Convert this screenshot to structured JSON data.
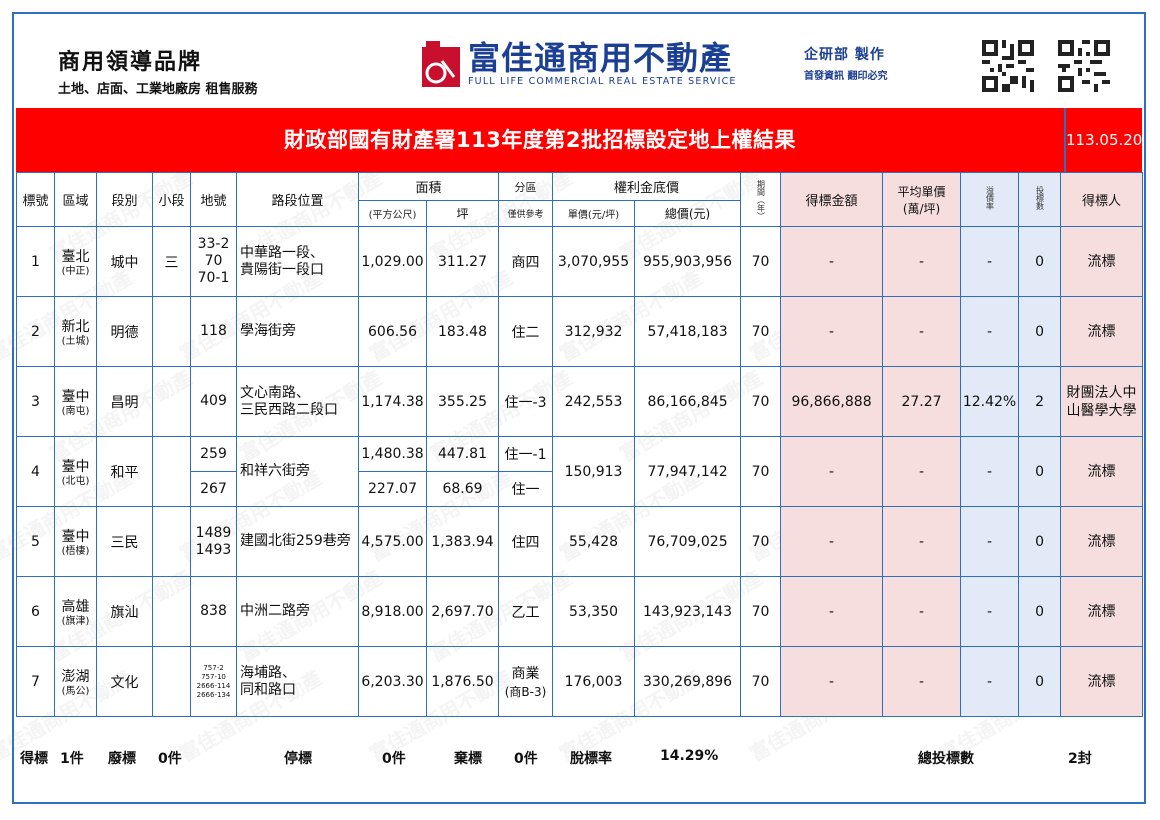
{
  "header": {
    "brand_title": "商用領導品牌",
    "brand_subtitle": "土地、店面、工業地廠房 租售服務",
    "company_name": "富佳通商用不動產",
    "company_en": "FULL LIFE COMMERCIAL REAL ESTATE SERVICE",
    "dept": "企研部 製作",
    "dept_note": "首發資訊 翻印必究"
  },
  "title": "財政部國有財產署113年度第2批招標設定地上權結果",
  "date": "113.05.20",
  "columns": {
    "no": "標號",
    "area": "區域",
    "section": "段別",
    "subsection": "小段",
    "lot": "地號",
    "location": "路段位置",
    "size": "面積",
    "size_sqm": "(平方公尺)",
    "size_ping": "坪",
    "zone": "分區",
    "zone_note": "僅供參考",
    "price": "權利金底價",
    "unit_price": "單價(元/坪)",
    "total_price": "總價(元)",
    "period": "期間（年）",
    "winning_amount": "得標金額",
    "avg_unit_price": "平均單價(萬/坪)",
    "premium_rate": "溢價率",
    "bid_count": "投標數",
    "winner": "得標人"
  },
  "rows": [
    {
      "no": "1",
      "area": "臺北",
      "district": "(中正)",
      "section": "城中",
      "subsection": "三",
      "lot": [
        "33-2",
        "70",
        "70-1"
      ],
      "location": [
        "中華路一段、",
        "貴陽街一段口"
      ],
      "sqm": "1,029.00",
      "ping": "311.27",
      "zone": "商四",
      "unit": "3,070,955",
      "total": "955,903,956",
      "period": "70",
      "win": "-",
      "avg": "-",
      "rate": "-",
      "bids": "0",
      "winner": "流標"
    },
    {
      "no": "2",
      "area": "新北",
      "district": "(土城)",
      "section": "明德",
      "subsection": "",
      "lot": [
        "118"
      ],
      "location": [
        "學海街旁"
      ],
      "sqm": "606.56",
      "ping": "183.48",
      "zone": "住二",
      "unit": "312,932",
      "total": "57,418,183",
      "period": "70",
      "win": "-",
      "avg": "-",
      "rate": "-",
      "bids": "0",
      "winner": "流標"
    },
    {
      "no": "3",
      "area": "臺中",
      "district": "(南屯)",
      "section": "昌明",
      "subsection": "",
      "lot": [
        "409"
      ],
      "location": [
        "文心南路、",
        "三民西路二段口"
      ],
      "sqm": "1,174.38",
      "ping": "355.25",
      "zone": "住一-3",
      "unit": "242,553",
      "total": "86,166,845",
      "period": "70",
      "win": "96,866,888",
      "avg": "27.27",
      "rate": "12.42%",
      "bids": "2",
      "winner": "財團法人中山醫學大學"
    },
    {
      "no": "4",
      "area": "臺中",
      "district": "(北屯)",
      "section": "和平",
      "subsection": "",
      "lot": [
        "259",
        "267"
      ],
      "location": [
        "和祥六街旁"
      ],
      "sqm": "1,480.38",
      "ping": "447.81",
      "zone": "住一-1",
      "sqm2": "227.07",
      "ping2": "68.69",
      "zone2": "住一",
      "unit": "150,913",
      "total": "77,947,142",
      "period": "70",
      "win": "-",
      "avg": "-",
      "rate": "-",
      "bids": "0",
      "winner": "流標"
    },
    {
      "no": "5",
      "area": "臺中",
      "district": "(梧棲)",
      "section": "三民",
      "subsection": "",
      "lot": [
        "1489",
        "1493"
      ],
      "location": [
        "建國北街259巷旁"
      ],
      "sqm": "4,575.00",
      "ping": "1,383.94",
      "zone": "住四",
      "unit": "55,428",
      "total": "76,709,025",
      "period": "70",
      "win": "-",
      "avg": "-",
      "rate": "-",
      "bids": "0",
      "winner": "流標"
    },
    {
      "no": "6",
      "area": "高雄",
      "district": "(旗津)",
      "section": "旗汕",
      "subsection": "",
      "lot": [
        "838"
      ],
      "location": [
        "中洲二路旁"
      ],
      "sqm": "8,918.00",
      "ping": "2,697.70",
      "zone": "乙工",
      "unit": "53,350",
      "total": "143,923,143",
      "period": "70",
      "win": "-",
      "avg": "-",
      "rate": "-",
      "bids": "0",
      "winner": "流標"
    },
    {
      "no": "7",
      "area": "澎湖",
      "district": "(馬公)",
      "section": "文化",
      "subsection": "",
      "lot": [
        "757-2",
        "757-10",
        "2666-114",
        "2666-134"
      ],
      "location": [
        "海埔路、",
        "同和路口"
      ],
      "sqm": "6,203.30",
      "ping": "1,876.50",
      "zone": "商業",
      "zone_sub": "(商B-3)",
      "unit": "176,003",
      "total": "330,269,896",
      "period": "70",
      "win": "-",
      "avg": "-",
      "rate": "-",
      "bids": "0",
      "winner": "流標"
    }
  ],
  "footer": {
    "won_label": "得標",
    "won_value": "1件",
    "void_label": "廢標",
    "void_value": "0件",
    "stop_label": "停標",
    "stop_value": "0件",
    "abandon_label": "棄標",
    "abandon_value": "0件",
    "rate_label": "脫標率",
    "rate_value": "14.29%",
    "bids_label": "總投標數",
    "bids_value": "2封"
  },
  "colors": {
    "title_bar": "#ff0000",
    "border": "#2e6fc2",
    "pink_col": "#f7dede",
    "blue_col": "#e1eaf6",
    "brand_blue": "#1b3f94"
  },
  "icons": [
    "logo-mark-icon",
    "qr-code-icon"
  ]
}
